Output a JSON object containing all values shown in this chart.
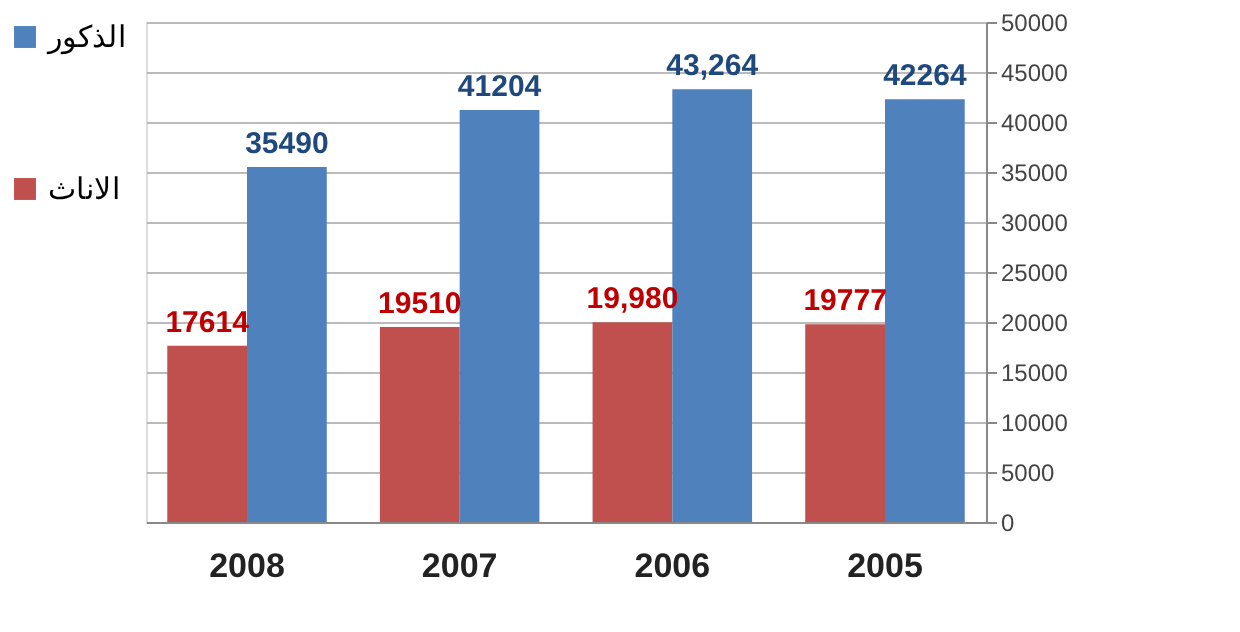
{
  "chart_data": {
    "type": "bar",
    "categories": [
      "2008",
      "2007",
      "2006",
      "2005"
    ],
    "series": [
      {
        "name": "الاناث",
        "color": "#c0504d",
        "values": [
          17614,
          19510,
          19980,
          19777
        ],
        "value_labels": [
          "17614",
          "19510",
          "19,980",
          "19777"
        ]
      },
      {
        "name": "الذكور",
        "color": "#4f81bd",
        "values": [
          35490,
          41204,
          43264,
          42264
        ],
        "value_labels": [
          "35490",
          "41204",
          "43,264",
          "42264"
        ]
      }
    ],
    "ylim": [
      0,
      50000
    ],
    "yticks": [
      0,
      5000,
      10000,
      15000,
      20000,
      25000,
      30000,
      35000,
      40000,
      45000,
      50000
    ],
    "grid": "y",
    "legend": "left"
  }
}
